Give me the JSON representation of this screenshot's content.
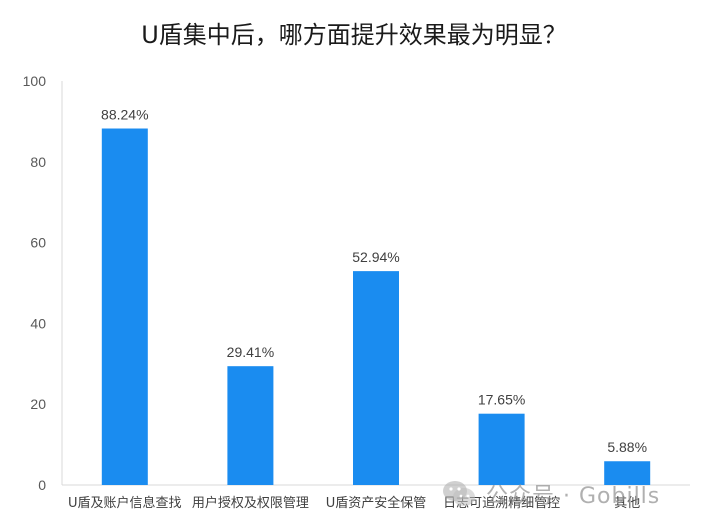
{
  "chart_data": {
    "type": "bar",
    "title": "U盾集中后，哪方面提升效果最为明显？",
    "categories": [
      "U盾及账户信息查找",
      "用户授权及权限管理",
      "U盾资产安全保管",
      "日志可追溯精细管控",
      "其他"
    ],
    "values": [
      88.24,
      29.41,
      52.94,
      17.65,
      5.88
    ],
    "data_labels": [
      "88.24%",
      "29.41%",
      "52.94%",
      "17.65%",
      "5.88%"
    ],
    "ylim": [
      0,
      100
    ],
    "yticks": [
      0,
      20,
      40,
      60,
      80,
      100
    ],
    "xlabel": "",
    "ylabel": "",
    "grid": false,
    "bar_color": "#1a8cf0"
  },
  "watermark": {
    "text": "公众号 · Gobills",
    "icon": "wechat-icon"
  }
}
